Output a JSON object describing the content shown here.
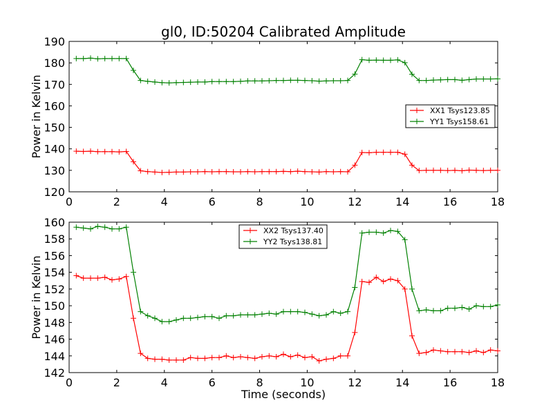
{
  "title": "gl0, ID:50204 Calibrated Amplitude",
  "colors": {
    "red": "#ff0000",
    "green": "#008000"
  },
  "chart_data": [
    {
      "type": "line",
      "xlabel": "",
      "ylabel": "Power in Kelvin",
      "xlim": [
        0,
        18
      ],
      "ylim": [
        120,
        190
      ],
      "xticks": [
        0,
        2,
        4,
        6,
        8,
        10,
        12,
        14,
        16,
        18
      ],
      "yticks": [
        120,
        130,
        140,
        150,
        160,
        170,
        180,
        190
      ],
      "grid": false,
      "legend_position": "center-right",
      "x": [
        0.3,
        0.6,
        0.9,
        1.2,
        1.5,
        1.8,
        2.1,
        2.4,
        2.7,
        3.0,
        3.3,
        3.6,
        3.9,
        4.2,
        4.5,
        4.8,
        5.1,
        5.4,
        5.7,
        6.0,
        6.3,
        6.6,
        6.9,
        7.2,
        7.5,
        7.8,
        8.1,
        8.4,
        8.7,
        9.0,
        9.3,
        9.6,
        9.9,
        10.2,
        10.5,
        10.8,
        11.1,
        11.4,
        11.7,
        12.0,
        12.3,
        12.6,
        12.9,
        13.2,
        13.5,
        13.8,
        14.1,
        14.4,
        14.7,
        15.0,
        15.3,
        15.6,
        15.9,
        16.2,
        16.5,
        16.8,
        17.1,
        17.4,
        17.7,
        18.0
      ],
      "series": [
        {
          "name": "XX1 Tsys123.85",
          "color": "#ff0000",
          "values": [
            138.9,
            138.8,
            138.9,
            138.7,
            138.7,
            138.7,
            138.6,
            138.8,
            134.0,
            129.8,
            129.4,
            129.2,
            129.0,
            129.1,
            129.2,
            129.2,
            129.3,
            129.3,
            129.4,
            129.3,
            129.4,
            129.4,
            129.3,
            129.3,
            129.4,
            129.3,
            129.4,
            129.4,
            129.4,
            129.5,
            129.4,
            129.6,
            129.4,
            129.3,
            129.2,
            129.4,
            129.3,
            129.4,
            129.3,
            132.4,
            138.3,
            138.2,
            138.4,
            138.4,
            138.4,
            138.4,
            137.5,
            132.4,
            129.9,
            130.0,
            130.0,
            130.0,
            129.9,
            130.0,
            129.8,
            130.1,
            130.0,
            129.9,
            130.0,
            130.0
          ]
        },
        {
          "name": "YY1 Tsys158.61",
          "color": "#008000",
          "values": [
            182.0,
            182.0,
            182.2,
            181.9,
            182.0,
            182.0,
            182.0,
            182.0,
            176.5,
            171.8,
            171.4,
            171.1,
            170.8,
            170.7,
            170.8,
            170.9,
            171.0,
            171.1,
            171.1,
            171.3,
            171.3,
            171.3,
            171.3,
            171.4,
            171.6,
            171.6,
            171.6,
            171.7,
            171.8,
            171.8,
            171.9,
            171.9,
            171.8,
            171.7,
            171.5,
            171.6,
            171.7,
            171.7,
            171.8,
            174.8,
            181.5,
            181.2,
            181.3,
            181.2,
            181.2,
            181.4,
            180.1,
            174.7,
            171.8,
            171.8,
            172.0,
            172.1,
            172.2,
            172.2,
            171.9,
            172.2,
            172.5,
            172.5,
            172.5,
            172.6
          ]
        }
      ]
    },
    {
      "type": "line",
      "xlabel": "Time (seconds)",
      "ylabel": "Power in Kelvin",
      "xlim": [
        0,
        18
      ],
      "ylim": [
        142,
        160
      ],
      "xticks": [
        0,
        2,
        4,
        6,
        8,
        10,
        12,
        14,
        16,
        18
      ],
      "yticks": [
        142,
        144,
        146,
        148,
        150,
        152,
        154,
        156,
        158,
        160
      ],
      "grid": false,
      "legend_position": "upper-center",
      "x": [
        0.3,
        0.6,
        0.9,
        1.2,
        1.5,
        1.8,
        2.1,
        2.4,
        2.7,
        3.0,
        3.3,
        3.6,
        3.9,
        4.2,
        4.5,
        4.8,
        5.1,
        5.4,
        5.7,
        6.0,
        6.3,
        6.6,
        6.9,
        7.2,
        7.5,
        7.8,
        8.1,
        8.4,
        8.7,
        9.0,
        9.3,
        9.6,
        9.9,
        10.2,
        10.5,
        10.8,
        11.1,
        11.4,
        11.7,
        12.0,
        12.3,
        12.6,
        12.9,
        13.2,
        13.5,
        13.8,
        14.1,
        14.4,
        14.7,
        15.0,
        15.3,
        15.6,
        15.9,
        16.2,
        16.5,
        16.8,
        17.1,
        17.4,
        17.7,
        18.0
      ],
      "series": [
        {
          "name": "XX2 Tsys137.40",
          "color": "#ff0000",
          "values": [
            153.6,
            153.3,
            153.3,
            153.3,
            153.4,
            153.1,
            153.2,
            153.5,
            148.5,
            144.3,
            143.7,
            143.6,
            143.6,
            143.5,
            143.5,
            143.5,
            143.8,
            143.7,
            143.7,
            143.8,
            143.8,
            144.0,
            143.8,
            143.9,
            143.8,
            143.7,
            143.9,
            144.0,
            143.9,
            144.2,
            143.9,
            144.1,
            143.8,
            143.9,
            143.4,
            143.6,
            143.7,
            144.0,
            144.0,
            146.8,
            152.9,
            152.8,
            153.4,
            152.9,
            153.2,
            153.0,
            152.0,
            146.4,
            144.3,
            144.4,
            144.7,
            144.6,
            144.5,
            144.5,
            144.5,
            144.4,
            144.6,
            144.4,
            144.7,
            144.6
          ]
        },
        {
          "name": "YY2 Tsys138.81",
          "color": "#008000",
          "values": [
            159.4,
            159.3,
            159.2,
            159.5,
            159.4,
            159.2,
            159.2,
            159.4,
            154.0,
            149.3,
            148.8,
            148.5,
            148.1,
            148.1,
            148.3,
            148.5,
            148.5,
            148.6,
            148.7,
            148.7,
            148.5,
            148.8,
            148.8,
            148.9,
            148.9,
            148.9,
            149.0,
            149.1,
            149.0,
            149.3,
            149.3,
            149.3,
            149.2,
            149.0,
            148.8,
            148.9,
            149.3,
            149.1,
            149.3,
            152.2,
            158.7,
            158.8,
            158.8,
            158.7,
            159.0,
            158.9,
            157.9,
            152.0,
            149.4,
            149.5,
            149.4,
            149.4,
            149.7,
            149.7,
            149.8,
            149.6,
            150.0,
            149.9,
            149.9,
            150.1
          ]
        }
      ]
    }
  ]
}
